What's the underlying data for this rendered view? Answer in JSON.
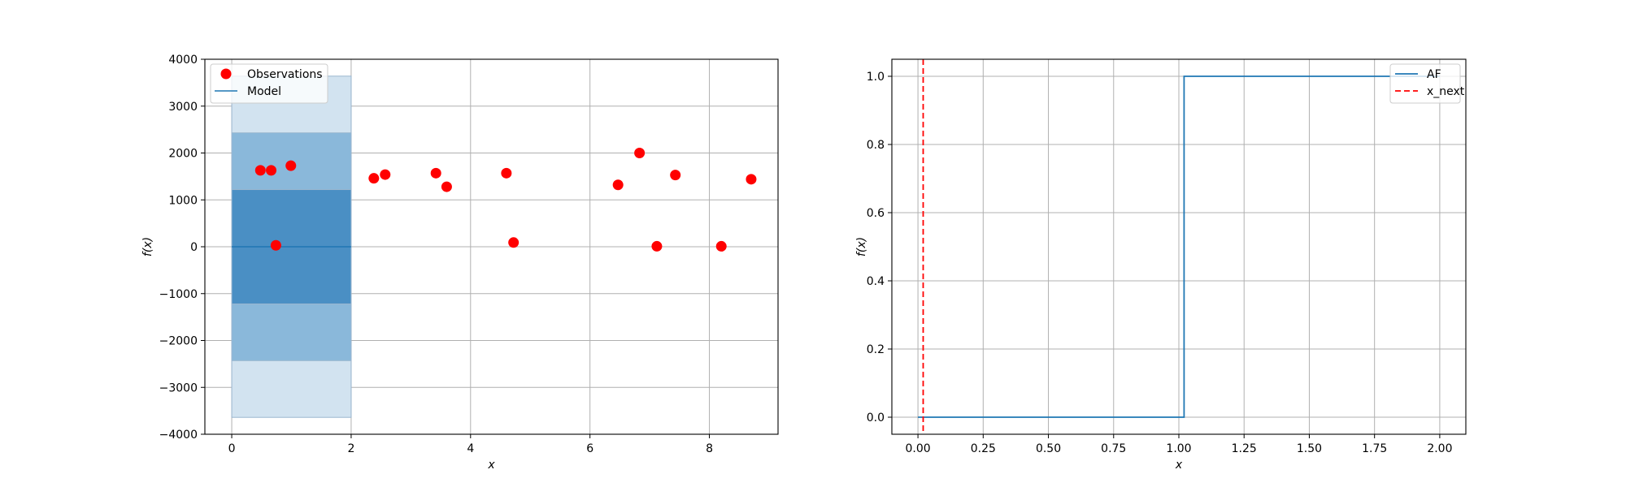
{
  "colors": {
    "observation": "#ff0000",
    "model": "#1f77b4",
    "band_1sigma": "#4a8fc4",
    "band_2sigma": "#8ab8da",
    "band_3sigma": "#d2e3f0",
    "x_next": "#ff0000",
    "grid": "#b0b0b0"
  },
  "chart_data": [
    {
      "type": "scatter",
      "xlabel": "x",
      "ylabel": "f(x)",
      "xlim": [
        -0.45,
        9.15
      ],
      "ylim": [
        -4000,
        4000
      ],
      "grid": true,
      "legend_position": "top-left",
      "xticks": [
        0,
        2,
        4,
        6,
        8
      ],
      "xtick_labels": [
        "0",
        "2",
        "4",
        "6",
        "8"
      ],
      "yticks": [
        -4000,
        -3000,
        -2000,
        -1000,
        0,
        1000,
        2000,
        3000,
        4000
      ],
      "ytick_labels": [
        "−4000",
        "−3000",
        "−2000",
        "−1000",
        "0",
        "1000",
        "2000",
        "3000",
        "4000"
      ],
      "series": [
        {
          "name": "Observations",
          "kind": "scatter",
          "x": [
            0.48,
            0.66,
            0.74,
            0.99,
            2.38,
            2.57,
            3.42,
            3.6,
            4.6,
            4.72,
            6.47,
            6.83,
            7.12,
            7.43,
            8.2,
            8.7
          ],
          "y": [
            1630,
            1630,
            30,
            1730,
            1460,
            1540,
            1570,
            1280,
            1570,
            90,
            1320,
            2000,
            10,
            1530,
            10,
            1440
          ]
        },
        {
          "name": "Model",
          "kind": "line",
          "x": [
            0,
            2
          ],
          "y": [
            0,
            0
          ]
        }
      ],
      "confidence_bands": [
        {
          "x": [
            0,
            2
          ],
          "lower": -3640,
          "upper": 3640,
          "level": "3-sigma"
        },
        {
          "x": [
            0,
            2
          ],
          "lower": -2430,
          "upper": 2430,
          "level": "2-sigma"
        },
        {
          "x": [
            0,
            2
          ],
          "lower": -1220,
          "upper": 1220,
          "level": "1-sigma"
        }
      ]
    },
    {
      "type": "line",
      "xlabel": "x",
      "ylabel": "f(x)",
      "xlim": [
        -0.1,
        2.1
      ],
      "ylim": [
        -0.05,
        1.05
      ],
      "grid": true,
      "legend_position": "top-right",
      "xticks": [
        0,
        0.25,
        0.5,
        0.75,
        1.0,
        1.25,
        1.5,
        1.75,
        2.0
      ],
      "xtick_labels": [
        "0.00",
        "0.25",
        "0.50",
        "0.75",
        "1.00",
        "1.25",
        "1.50",
        "1.75",
        "2.00"
      ],
      "yticks": [
        0,
        0.2,
        0.4,
        0.6,
        0.8,
        1.0
      ],
      "ytick_labels": [
        "0.0",
        "0.2",
        "0.4",
        "0.6",
        "0.8",
        "1.0"
      ],
      "series": [
        {
          "name": "AF",
          "kind": "step",
          "x": [
            0,
            1.02,
            1.02,
            2.0
          ],
          "y": [
            0,
            0,
            1,
            1
          ]
        },
        {
          "name": "x_next",
          "kind": "vline",
          "x": 0.02
        }
      ]
    }
  ]
}
